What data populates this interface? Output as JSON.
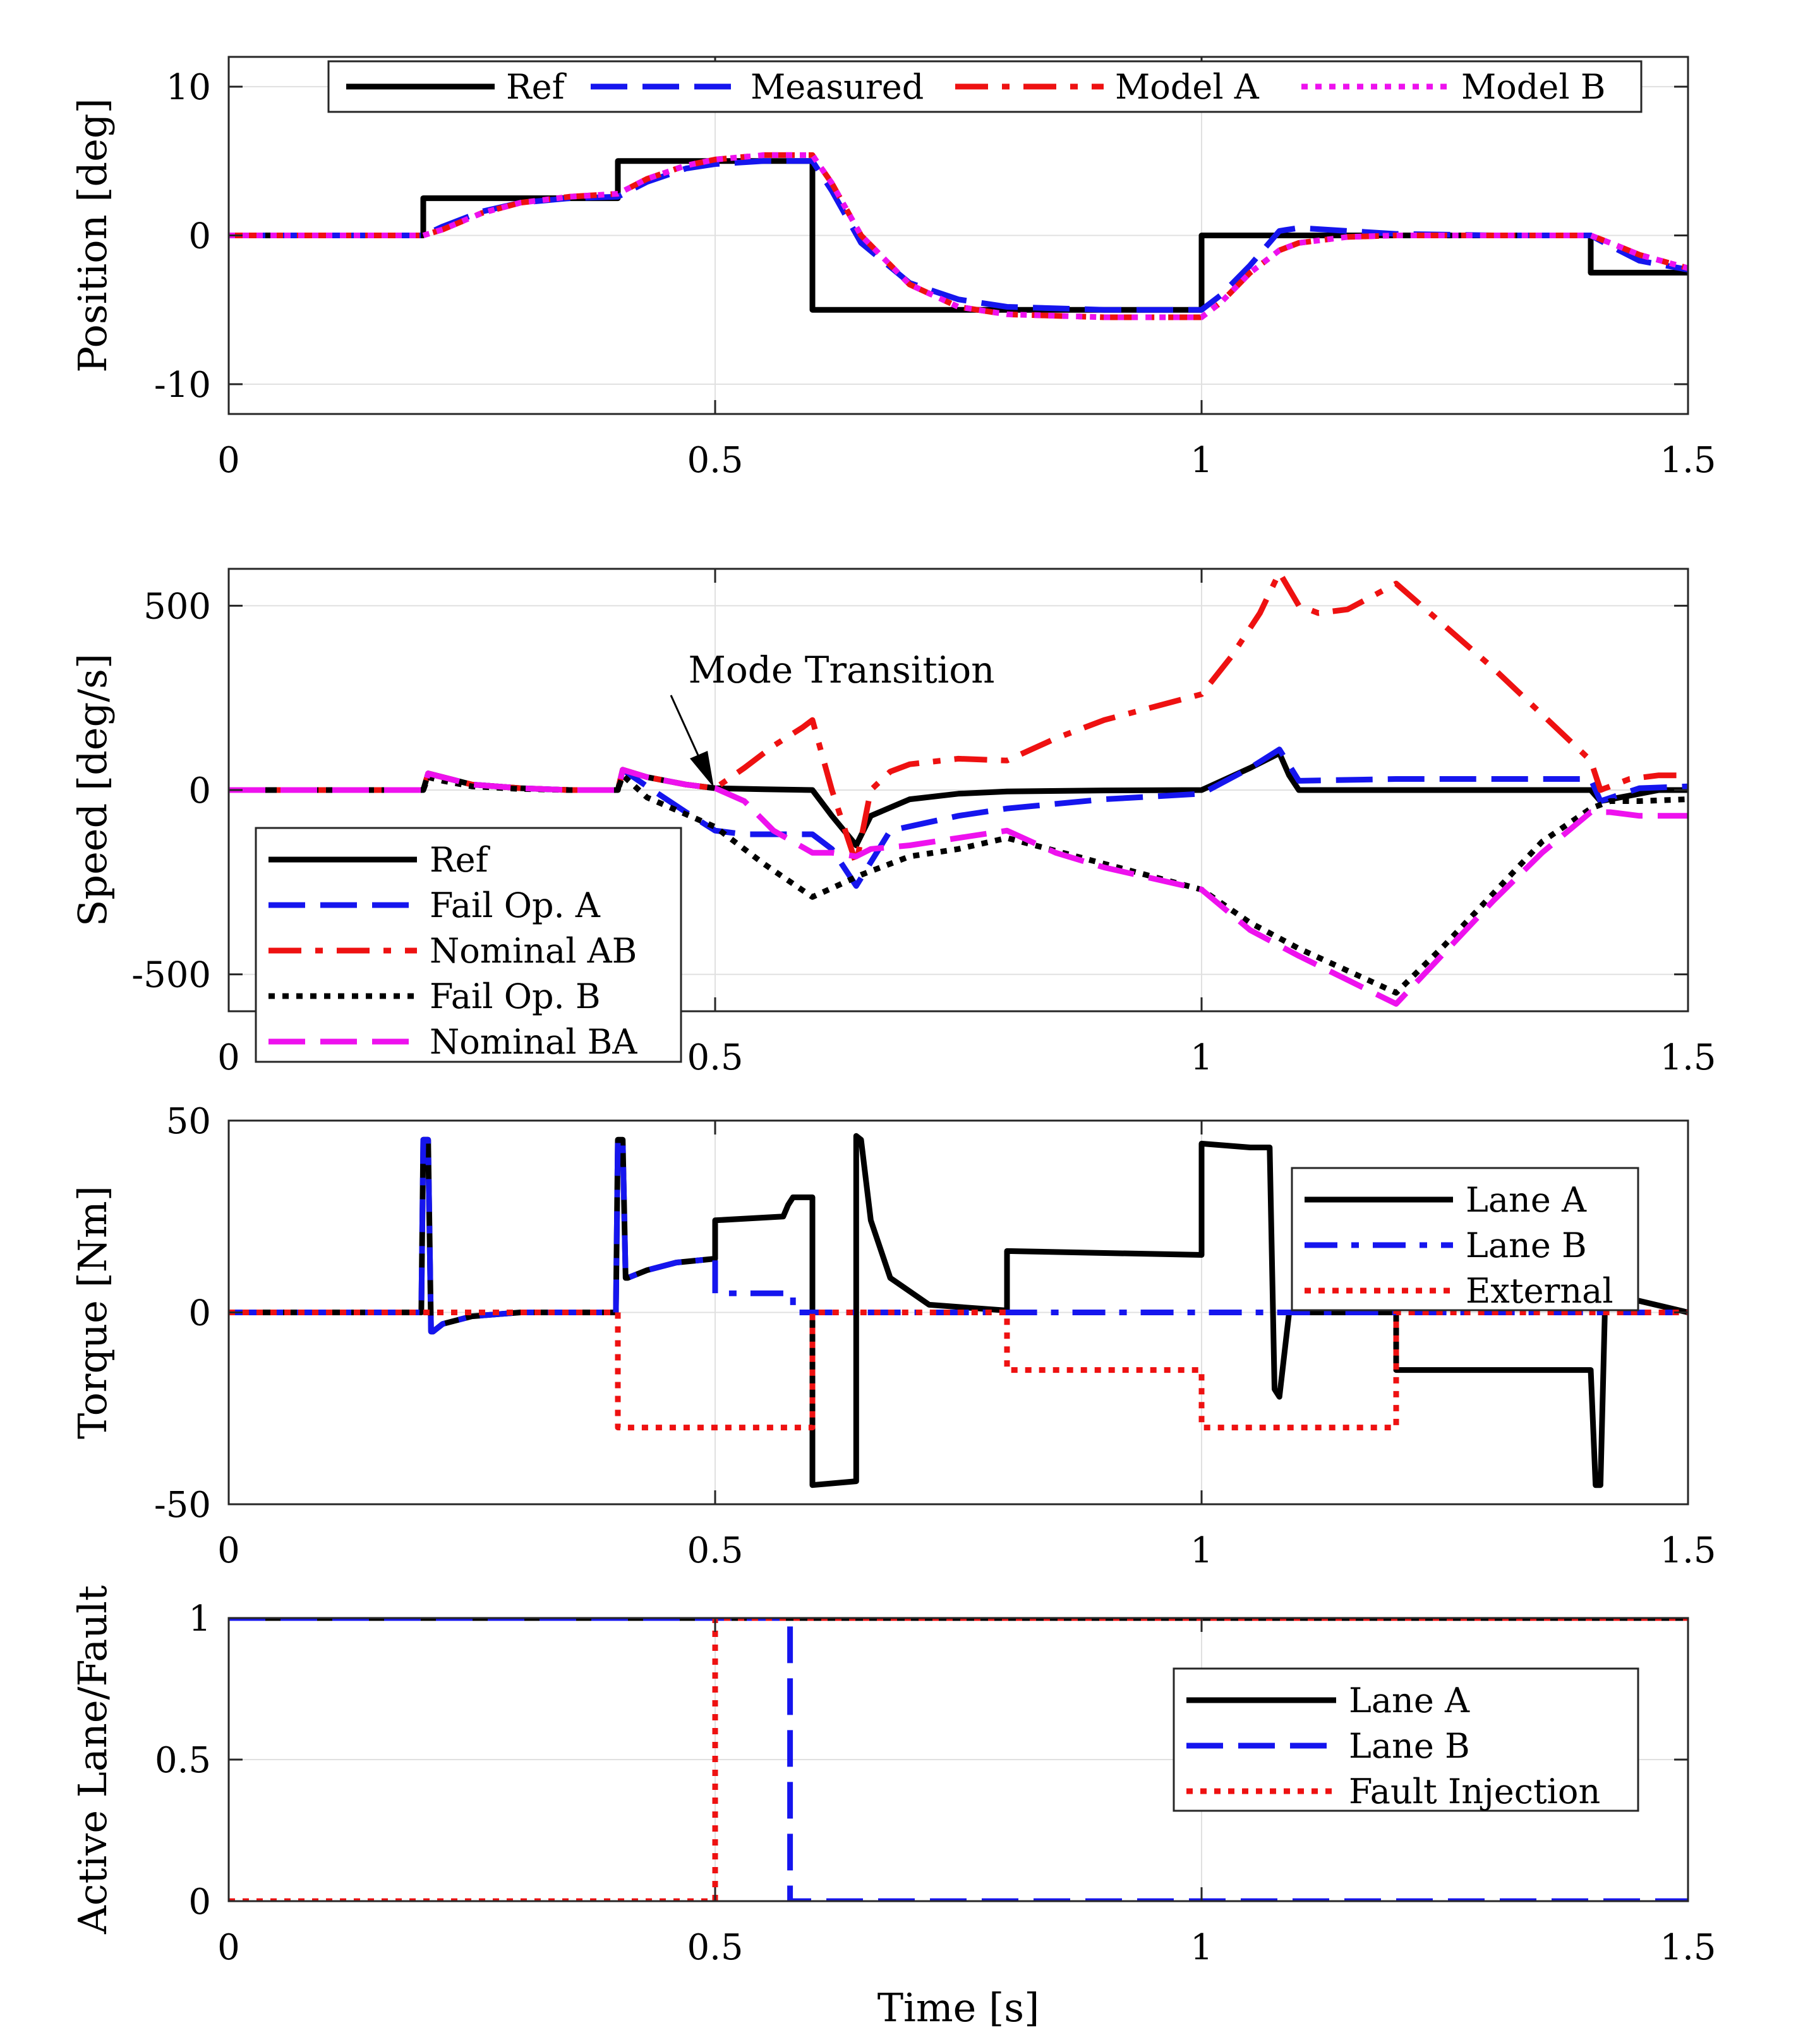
{
  "chart_data": [
    {
      "type": "line",
      "title": "",
      "xlabel": "",
      "ylabel": "Position [deg]",
      "xlim": [
        0,
        1.5
      ],
      "ylim": [
        -12,
        12
      ],
      "xticks": [
        0,
        0.5,
        1,
        1.5
      ],
      "xtick_labels": [
        "0",
        "0.5",
        "1",
        "1.5"
      ],
      "yticks": [
        10,
        0,
        -10
      ],
      "ytick_labels": [
        "10",
        "0",
        "-10"
      ],
      "grid": true,
      "legend": {
        "placement": "top (horizontal)"
      },
      "series": [
        {
          "name": "Ref",
          "color": "#000000",
          "style": "solid",
          "x": [
            0,
            0.2,
            0.2,
            0.4,
            0.4,
            0.6,
            0.6,
            1.0,
            1.0,
            1.4,
            1.4,
            1.5
          ],
          "y": [
            0,
            0,
            2.5,
            2.5,
            5,
            5,
            -5,
            -5,
            0,
            0,
            -2.5,
            -2.5
          ]
        },
        {
          "name": "Measured",
          "color": "#1515ee",
          "style": "dash",
          "x": [
            0,
            0.2,
            0.22,
            0.26,
            0.3,
            0.35,
            0.4,
            0.43,
            0.47,
            0.5,
            0.55,
            0.6,
            0.62,
            0.65,
            0.7,
            0.75,
            0.8,
            0.9,
            1.0,
            1.02,
            1.05,
            1.08,
            1.1,
            1.15,
            1.2,
            1.3,
            1.4,
            1.42,
            1.45,
            1.5
          ],
          "y": [
            0,
            0,
            0.6,
            1.6,
            2.2,
            2.5,
            2.6,
            3.6,
            4.5,
            4.8,
            5.0,
            5.0,
            3.0,
            -0.5,
            -3.2,
            -4.3,
            -4.8,
            -5.0,
            -5.0,
            -4.0,
            -2.0,
            0.3,
            0.5,
            0.3,
            0.1,
            0,
            0,
            -0.7,
            -1.7,
            -2.3
          ]
        },
        {
          "name": "Model A",
          "color": "#ee1111",
          "style": "dashdot",
          "x": [
            0,
            0.2,
            0.22,
            0.26,
            0.3,
            0.35,
            0.4,
            0.43,
            0.47,
            0.5,
            0.55,
            0.6,
            0.62,
            0.65,
            0.7,
            0.75,
            0.8,
            0.9,
            1.0,
            1.02,
            1.05,
            1.08,
            1.1,
            1.15,
            1.2,
            1.3,
            1.4,
            1.42,
            1.45,
            1.5
          ],
          "y": [
            0,
            0,
            0.4,
            1.5,
            2.2,
            2.6,
            2.8,
            3.8,
            4.7,
            5.1,
            5.4,
            5.4,
            3.5,
            0,
            -3.3,
            -4.8,
            -5.3,
            -5.5,
            -5.5,
            -4.5,
            -2.5,
            -1.0,
            -0.5,
            -0.1,
            0,
            0,
            0,
            -0.5,
            -1.3,
            -2.2
          ]
        },
        {
          "name": "Model B",
          "color": "#ee11ee",
          "style": "dot",
          "x": [
            0,
            0.2,
            0.22,
            0.26,
            0.3,
            0.35,
            0.4,
            0.43,
            0.47,
            0.5,
            0.55,
            0.6,
            0.62,
            0.65,
            0.7,
            0.75,
            0.8,
            0.9,
            1.0,
            1.02,
            1.05,
            1.08,
            1.1,
            1.15,
            1.2,
            1.3,
            1.4,
            1.42,
            1.45,
            1.5
          ],
          "y": [
            0,
            0,
            0.4,
            1.5,
            2.2,
            2.6,
            2.8,
            3.8,
            4.7,
            5.1,
            5.4,
            5.4,
            3.5,
            0,
            -3.3,
            -4.8,
            -5.3,
            -5.5,
            -5.5,
            -4.5,
            -2.5,
            -1.0,
            -0.5,
            -0.1,
            0,
            0,
            0,
            -0.5,
            -1.3,
            -2.2
          ]
        }
      ]
    },
    {
      "type": "line",
      "title": "",
      "xlabel": "",
      "ylabel": "Speed [deg/s]",
      "xlim": [
        0,
        1.5
      ],
      "ylim": [
        -600,
        600
      ],
      "xticks": [
        0,
        0.5,
        1,
        1.5
      ],
      "xtick_labels": [
        "0",
        "0.5",
        "1",
        "1.5"
      ],
      "yticks": [
        500,
        0,
        -500
      ],
      "ytick_labels": [
        "500",
        "0",
        "-500"
      ],
      "grid": true,
      "legend": {
        "placement": "bottom-left"
      },
      "annotations": [
        {
          "text": "Mode Transition",
          "x": 0.5,
          "y": 0
        }
      ],
      "series": [
        {
          "name": "Ref",
          "color": "#000000",
          "style": "solid",
          "x": [
            0,
            0.2,
            0.205,
            0.22,
            0.25,
            0.3,
            0.35,
            0.4,
            0.405,
            0.43,
            0.47,
            0.5,
            0.55,
            0.6,
            0.62,
            0.645,
            0.66,
            0.7,
            0.75,
            0.8,
            0.9,
            1.0,
            1.05,
            1.08,
            1.09,
            1.1,
            1.2,
            1.3,
            1.4,
            1.41,
            1.44,
            1.47,
            1.5
          ],
          "y": [
            0,
            0,
            45,
            35,
            15,
            5,
            0,
            0,
            55,
            35,
            15,
            5,
            2,
            0,
            -70,
            -150,
            -70,
            -25,
            -10,
            -4,
            -1,
            0,
            60,
            100,
            40,
            0,
            0,
            0,
            0,
            -30,
            -15,
            0,
            0
          ]
        },
        {
          "name": "Fail Op. A",
          "color": "#1515ee",
          "style": "dash",
          "x": [
            0,
            0.2,
            0.205,
            0.22,
            0.25,
            0.3,
            0.35,
            0.4,
            0.405,
            0.43,
            0.47,
            0.5,
            0.53,
            0.58,
            0.6,
            0.62,
            0.645,
            0.68,
            0.75,
            0.8,
            0.9,
            1.0,
            1.05,
            1.08,
            1.1,
            1.2,
            1.3,
            1.4,
            1.41,
            1.45,
            1.5
          ],
          "y": [
            0,
            0,
            45,
            35,
            15,
            5,
            0,
            0,
            55,
            10,
            -60,
            -110,
            -120,
            -120,
            -120,
            -160,
            -260,
            -110,
            -70,
            -50,
            -25,
            -10,
            60,
            110,
            25,
            30,
            30,
            30,
            -30,
            5,
            10
          ]
        },
        {
          "name": "Nominal AB",
          "color": "#ee1111",
          "style": "dashdot",
          "x": [
            0,
            0.2,
            0.205,
            0.22,
            0.25,
            0.3,
            0.35,
            0.4,
            0.405,
            0.43,
            0.47,
            0.5,
            0.53,
            0.56,
            0.59,
            0.6,
            0.62,
            0.645,
            0.66,
            0.68,
            0.7,
            0.75,
            0.8,
            0.85,
            0.9,
            1.0,
            1.03,
            1.06,
            1.08,
            1.1,
            1.12,
            1.15,
            1.2,
            1.3,
            1.4,
            1.41,
            1.44,
            1.47,
            1.5
          ],
          "y": [
            0,
            0,
            45,
            35,
            15,
            5,
            0,
            0,
            55,
            35,
            15,
            5,
            60,
            120,
            170,
            190,
            0,
            -200,
            0,
            50,
            70,
            85,
            80,
            140,
            190,
            260,
            360,
            480,
            590,
            500,
            480,
            490,
            560,
            330,
            80,
            0,
            30,
            40,
            40
          ]
        },
        {
          "name": "Fail Op. B",
          "color": "#000000",
          "style": "dot",
          "x": [
            0,
            0.2,
            0.205,
            0.22,
            0.25,
            0.3,
            0.35,
            0.4,
            0.405,
            0.43,
            0.5,
            0.55,
            0.6,
            0.65,
            0.7,
            0.75,
            0.8,
            0.9,
            1.0,
            1.05,
            1.1,
            1.2,
            1.25,
            1.3,
            1.35,
            1.4,
            1.42,
            1.45,
            1.5
          ],
          "y": [
            0,
            0,
            35,
            25,
            10,
            3,
            0,
            0,
            40,
            -20,
            -100,
            -200,
            -290,
            -230,
            -180,
            -160,
            -130,
            -200,
            -270,
            -360,
            -430,
            -550,
            -420,
            -280,
            -140,
            -50,
            -30,
            -30,
            -25
          ]
        },
        {
          "name": "Nominal BA",
          "color": "#ee11ee",
          "style": "dash",
          "x": [
            0,
            0.2,
            0.205,
            0.22,
            0.25,
            0.3,
            0.35,
            0.4,
            0.405,
            0.43,
            0.47,
            0.5,
            0.53,
            0.56,
            0.6,
            0.62,
            0.645,
            0.66,
            0.7,
            0.75,
            0.8,
            0.85,
            0.9,
            1.0,
            1.05,
            1.1,
            1.2,
            1.25,
            1.3,
            1.35,
            1.4,
            1.42,
            1.45,
            1.5
          ],
          "y": [
            0,
            0,
            45,
            35,
            15,
            5,
            0,
            0,
            55,
            35,
            15,
            5,
            -30,
            -110,
            -170,
            -170,
            -180,
            -160,
            -150,
            -130,
            -110,
            -170,
            -210,
            -270,
            -380,
            -450,
            -580,
            -440,
            -300,
            -170,
            -60,
            -60,
            -70,
            -70
          ]
        }
      ]
    },
    {
      "type": "line",
      "title": "",
      "xlabel": "",
      "ylabel": "Torque [Nm]",
      "xlim": [
        0,
        1.5
      ],
      "ylim": [
        -50,
        50
      ],
      "xticks": [
        0,
        0.5,
        1,
        1.5
      ],
      "xtick_labels": [
        "0",
        "0.5",
        "1",
        "1.5"
      ],
      "yticks": [
        50,
        0,
        -50
      ],
      "ytick_labels": [
        "50",
        "0",
        "-50"
      ],
      "grid": true,
      "legend": {
        "placement": "top-right"
      },
      "series": [
        {
          "name": "Lane A",
          "color": "#000000",
          "style": "solid",
          "x": [
            0,
            0.198,
            0.2,
            0.205,
            0.208,
            0.21,
            0.22,
            0.25,
            0.3,
            0.35,
            0.398,
            0.4,
            0.405,
            0.408,
            0.41,
            0.43,
            0.46,
            0.5,
            0.5,
            0.57,
            0.575,
            0.58,
            0.59,
            0.6,
            0.6,
            0.645,
            0.645,
            0.65,
            0.66,
            0.68,
            0.72,
            0.8,
            0.8,
            1.0,
            1.0,
            1.05,
            1.07,
            1.075,
            1.08,
            1.09,
            1.2,
            1.2,
            1.4,
            1.405,
            1.41,
            1.415,
            1.45,
            1.5
          ],
          "y": [
            0,
            0,
            45,
            45,
            -5,
            -5,
            -3,
            -1,
            0,
            0,
            0,
            45,
            45,
            9,
            9,
            11,
            13,
            14,
            24,
            25,
            28,
            30,
            30,
            30,
            -45,
            -44,
            46,
            45,
            24,
            9,
            2,
            0.5,
            16,
            15,
            44,
            43,
            43,
            -20,
            -22,
            0,
            0,
            -15,
            -15,
            -45,
            -45,
            5,
            3,
            0
          ]
        },
        {
          "name": "Lane B",
          "color": "#1515ee",
          "style": "dashdot",
          "x": [
            0,
            0.198,
            0.2,
            0.205,
            0.208,
            0.21,
            0.22,
            0.25,
            0.3,
            0.35,
            0.398,
            0.4,
            0.405,
            0.408,
            0.41,
            0.43,
            0.46,
            0.5,
            0.5,
            0.58,
            0.58,
            1.5
          ],
          "y": [
            0,
            0,
            45,
            45,
            -5,
            -5,
            -3,
            -1,
            0,
            0,
            0,
            45,
            45,
            9,
            9,
            11,
            13,
            14,
            5,
            5,
            0,
            0
          ]
        },
        {
          "name": "External",
          "color": "#ee1111",
          "style": "dot",
          "x": [
            0,
            0.4,
            0.4,
            0.6,
            0.6,
            0.8,
            0.8,
            1.0,
            1.0,
            1.2,
            1.2,
            1.5
          ],
          "y": [
            0,
            0,
            -30,
            -30,
            0,
            0,
            -15,
            -15,
            -30,
            -30,
            0,
            0
          ]
        }
      ]
    },
    {
      "type": "line",
      "title": "",
      "xlabel": "Time [s]",
      "ylabel": "Active Lane/Fault",
      "xlim": [
        0,
        1.5
      ],
      "ylim": [
        0,
        1
      ],
      "xticks": [
        0,
        0.5,
        1,
        1.5
      ],
      "xtick_labels": [
        "0",
        "0.5",
        "1",
        "1.5"
      ],
      "yticks": [
        1,
        0.5,
        0
      ],
      "ytick_labels": [
        "1",
        "0.5",
        "0"
      ],
      "grid": true,
      "legend": {
        "placement": "right"
      },
      "series": [
        {
          "name": "Lane A",
          "color": "#000000",
          "style": "solid",
          "x": [
            0,
            1.5
          ],
          "y": [
            1,
            1
          ]
        },
        {
          "name": "Lane B",
          "color": "#1515ee",
          "style": "dash",
          "x": [
            0,
            0.577,
            0.577,
            1.5
          ],
          "y": [
            1,
            1,
            0,
            0
          ]
        },
        {
          "name": "Fault Injection",
          "color": "#ee1111",
          "style": "dot",
          "x": [
            0,
            0.5,
            0.5,
            1.5
          ],
          "y": [
            0,
            0,
            1,
            1
          ]
        }
      ]
    }
  ]
}
